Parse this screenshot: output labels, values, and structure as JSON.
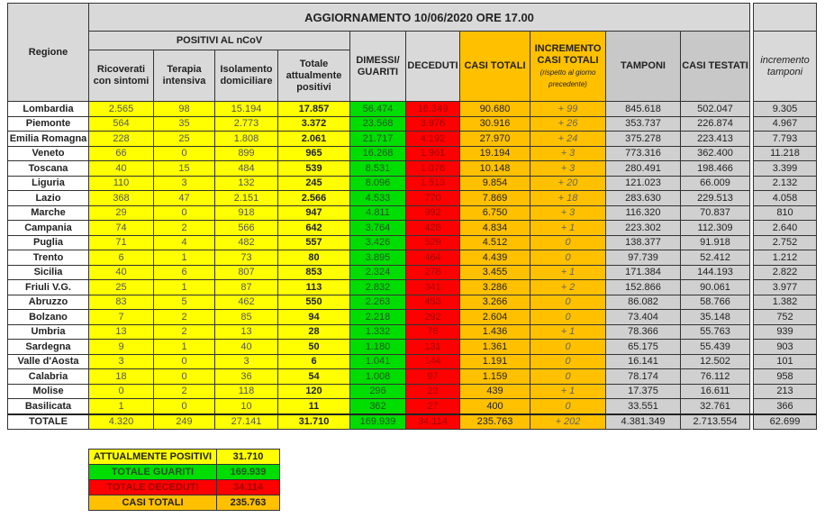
{
  "title": "AGGIORNAMENTO 10/06/2020 ORE 17.00",
  "headers": {
    "regione": "Regione",
    "positivi_group": "POSITIVI AL nCoV",
    "ricoverati": "Ricoverati con sintomi",
    "terapia": "Terapia intensiva",
    "isolamento": "Isolamento domiciliare",
    "totale_positivi": "Totale attualmente positivi",
    "dimessi": "DIMESSI/ GUARITI",
    "deceduti": "DECEDUTI",
    "casi_totali": "CASI TOTALI",
    "incremento": "INCREMENTO CASI TOTALI",
    "incremento_note": "(rispetto al giorno precedente)",
    "tamponi": "TAMPONI",
    "casi_testati": "CASI TESTATI",
    "incremento_tamponi": "incremento tamponi"
  },
  "colors": {
    "positivi": "#ffff00",
    "guariti": "#00dd00",
    "deceduti": "#ff0000",
    "casi": "#ffc000",
    "tamponi": "#d0d0d0"
  },
  "rows": [
    [
      "Lombardia",
      "2.565",
      "98",
      "15.194",
      "17.857",
      "56.474",
      "16.349",
      "90.680",
      "+ 99",
      "845.618",
      "502.047",
      "9.305"
    ],
    [
      "Piemonte",
      "564",
      "35",
      "2.773",
      "3.372",
      "23.568",
      "3.976",
      "30.916",
      "+ 26",
      "353.737",
      "226.874",
      "4.967"
    ],
    [
      "Emilia Romagna",
      "228",
      "25",
      "1.808",
      "2.061",
      "21.717",
      "4.192",
      "27.970",
      "+ 24",
      "375.278",
      "223.413",
      "7.793"
    ],
    [
      "Veneto",
      "66",
      "0",
      "899",
      "965",
      "16.268",
      "1.961",
      "19.194",
      "+ 3",
      "773.316",
      "362.400",
      "11.218"
    ],
    [
      "Toscana",
      "40",
      "15",
      "484",
      "539",
      "8.531",
      "1.078",
      "10.148",
      "+ 3",
      "280.491",
      "198.466",
      "3.399"
    ],
    [
      "Liguria",
      "110",
      "3",
      "132",
      "245",
      "8.096",
      "1.513",
      "9.854",
      "+ 20",
      "121.023",
      "66.009",
      "2.132"
    ],
    [
      "Lazio",
      "368",
      "47",
      "2.151",
      "2.566",
      "4.533",
      "770",
      "7.869",
      "+ 18",
      "283.630",
      "229.513",
      "4.058"
    ],
    [
      "Marche",
      "29",
      "0",
      "918",
      "947",
      "4.811",
      "992",
      "6.750",
      "+ 3",
      "116.320",
      "70.837",
      "810"
    ],
    [
      "Campania",
      "74",
      "2",
      "566",
      "642",
      "3.764",
      "428",
      "4.834",
      "+ 1",
      "223.302",
      "112.309",
      "2.640"
    ],
    [
      "Puglia",
      "71",
      "4",
      "482",
      "557",
      "3.426",
      "529",
      "4.512",
      "0",
      "138.377",
      "91.918",
      "2.752"
    ],
    [
      "Trento",
      "6",
      "1",
      "73",
      "80",
      "3.895",
      "464",
      "4.439",
      "0",
      "97.739",
      "52.412",
      "1.212"
    ],
    [
      "Sicilia",
      "40",
      "6",
      "807",
      "853",
      "2.324",
      "278",
      "3.455",
      "+ 1",
      "171.384",
      "144.193",
      "2.822"
    ],
    [
      "Friuli V.G.",
      "25",
      "1",
      "87",
      "113",
      "2.832",
      "341",
      "3.286",
      "+ 2",
      "152.866",
      "90.061",
      "3.977"
    ],
    [
      "Abruzzo",
      "83",
      "5",
      "462",
      "550",
      "2.263",
      "453",
      "3.266",
      "0",
      "86.082",
      "58.766",
      "1.382"
    ],
    [
      "Bolzano",
      "7",
      "2",
      "85",
      "94",
      "2.218",
      "292",
      "2.604",
      "0",
      "73.404",
      "35.148",
      "752"
    ],
    [
      "Umbria",
      "13",
      "2",
      "13",
      "28",
      "1.332",
      "76",
      "1.436",
      "+ 1",
      "78.366",
      "55.763",
      "939"
    ],
    [
      "Sardegna",
      "9",
      "1",
      "40",
      "50",
      "1.180",
      "131",
      "1.361",
      "0",
      "65.175",
      "55.439",
      "903"
    ],
    [
      "Valle d'Aosta",
      "3",
      "0",
      "3",
      "6",
      "1.041",
      "144",
      "1.191",
      "0",
      "16.141",
      "12.502",
      "101"
    ],
    [
      "Calabria",
      "18",
      "0",
      "36",
      "54",
      "1.008",
      "97",
      "1.159",
      "0",
      "78.174",
      "76.112",
      "958"
    ],
    [
      "Molise",
      "0",
      "2",
      "118",
      "120",
      "296",
      "23",
      "439",
      "+ 1",
      "17.375",
      "16.611",
      "213"
    ],
    [
      "Basilicata",
      "1",
      "0",
      "10",
      "11",
      "362",
      "27",
      "400",
      "0",
      "33.551",
      "32.761",
      "366"
    ],
    [
      "TOTALE",
      "4.320",
      "249",
      "27.141",
      "31.710",
      "169.939",
      "34.114",
      "235.763",
      "+ 202",
      "4.381.349",
      "2.713.554",
      "62.699"
    ]
  ],
  "summary": [
    {
      "label": "ATTUALMENTE POSITIVI",
      "value": "31.710",
      "color": "#ffff00",
      "text": "#222"
    },
    {
      "label": "TOTALE GUARITI",
      "value": "169.939",
      "color": "#00dd00",
      "text": "#225522"
    },
    {
      "label": "TOTALE DECEDUTI",
      "value": "34.114",
      "color": "#ff0000",
      "text": "#a00000"
    },
    {
      "label": "CASI TOTALI",
      "value": "235.763",
      "color": "#ffc000",
      "text": "#222"
    }
  ]
}
